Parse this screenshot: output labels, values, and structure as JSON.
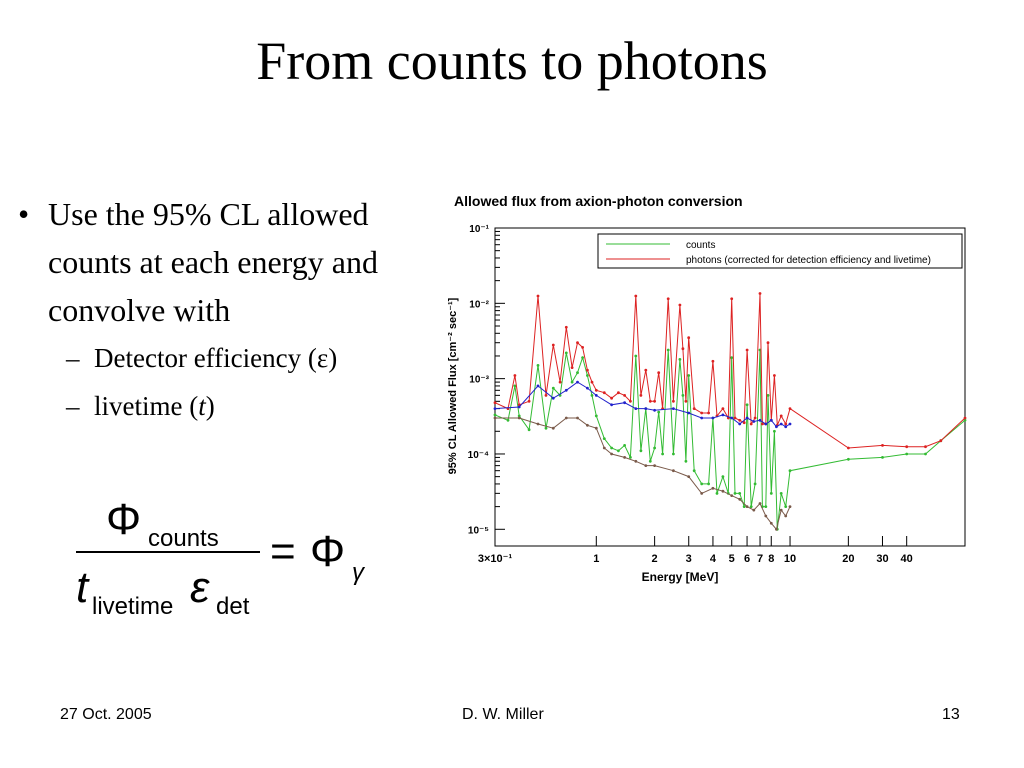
{
  "slide": {
    "title": "From counts to photons",
    "bullets": [
      {
        "text": "Use the 95% CL allowed counts at each energy and convolve with",
        "sub": [
          {
            "prefix": "Detector efficiency (",
            "symbol": "ε",
            "suffix": ")"
          },
          {
            "prefix": "livetime (",
            "symbol": "t",
            "suffix": ")"
          }
        ]
      }
    ],
    "formula": {
      "numerator_symbol": "Φ",
      "numerator_sub": "counts",
      "denominator_t": "t",
      "denominator_t_sub": "livetime",
      "denominator_eps": "ε",
      "denominator_eps_sub": "det",
      "equals": "=",
      "rhs_symbol": "Φ",
      "rhs_sub": "γ"
    }
  },
  "footer": {
    "date": "27 Oct. 2005",
    "author": "D. W. Miller",
    "page": "13"
  },
  "chart_data": {
    "type": "line",
    "title": "Allowed flux from axion-photon conversion",
    "xlabel": "Energy [MeV]",
    "ylabel": "95% CL Allowed Flux [cm⁻² sec⁻¹]",
    "x_scale": "log",
    "y_scale": "log",
    "xlim": [
      0.3,
      80
    ],
    "ylim": [
      6e-06,
      0.1
    ],
    "grid": false,
    "legend_position": "top-right",
    "x_ticks": [
      {
        "v": 0.3,
        "label": "3×10⁻¹"
      },
      {
        "v": 1,
        "label": "1"
      },
      {
        "v": 2,
        "label": "2"
      },
      {
        "v": 3,
        "label": "3"
      },
      {
        "v": 4,
        "label": "4"
      },
      {
        "v": 5,
        "label": "5"
      },
      {
        "v": 6,
        "label": "6"
      },
      {
        "v": 7,
        "label": "7"
      },
      {
        "v": 8,
        "label": "8"
      },
      {
        "v": 10,
        "label": "10"
      },
      {
        "v": 20,
        "label": "20"
      },
      {
        "v": 30,
        "label": "30"
      },
      {
        "v": 40,
        "label": "40"
      }
    ],
    "y_ticks": [
      {
        "v": 1e-05,
        "label": "10⁻⁵"
      },
      {
        "v": 0.0001,
        "label": "10⁻⁴"
      },
      {
        "v": 0.001,
        "label": "10⁻³"
      },
      {
        "v": 0.01,
        "label": "10⁻²"
      },
      {
        "v": 0.1,
        "label": "10⁻¹"
      }
    ],
    "series": [
      {
        "name": "counts",
        "color": "#33bb33",
        "points": [
          [
            0.3,
            0.00033
          ],
          [
            0.35,
            0.00028
          ],
          [
            0.38,
            0.0008
          ],
          [
            0.4,
            0.00032
          ],
          [
            0.45,
            0.00021
          ],
          [
            0.5,
            0.0015
          ],
          [
            0.55,
            0.00022
          ],
          [
            0.6,
            0.00075
          ],
          [
            0.65,
            0.0006
          ],
          [
            0.7,
            0.0022
          ],
          [
            0.75,
            0.0009
          ],
          [
            0.8,
            0.0012
          ],
          [
            0.85,
            0.0019
          ],
          [
            0.9,
            0.0011
          ],
          [
            0.95,
            0.0006
          ],
          [
            1.0,
            0.00032
          ],
          [
            1.1,
            0.00016
          ],
          [
            1.2,
            0.00012
          ],
          [
            1.3,
            0.00011
          ],
          [
            1.4,
            0.00013
          ],
          [
            1.5,
            9e-05
          ],
          [
            1.6,
            0.002
          ],
          [
            1.7,
            0.00011
          ],
          [
            1.8,
            0.0004
          ],
          [
            1.9,
            8e-05
          ],
          [
            2.0,
            0.00012
          ],
          [
            2.1,
            0.00036
          ],
          [
            2.2,
            0.0001
          ],
          [
            2.35,
            0.0024
          ],
          [
            2.5,
            0.0001
          ],
          [
            2.7,
            0.0018
          ],
          [
            2.8,
            0.0006
          ],
          [
            2.9,
            8e-05
          ],
          [
            3.0,
            0.0011
          ],
          [
            3.2,
            6e-05
          ],
          [
            3.5,
            4e-05
          ],
          [
            3.8,
            4e-05
          ],
          [
            4.0,
            0.0003
          ],
          [
            4.2,
            3e-05
          ],
          [
            4.5,
            5e-05
          ],
          [
            4.8,
            3e-05
          ],
          [
            5.0,
            0.0019
          ],
          [
            5.2,
            3e-05
          ],
          [
            5.5,
            3e-05
          ],
          [
            5.8,
            2e-05
          ],
          [
            6.0,
            0.00045
          ],
          [
            6.3,
            2e-05
          ],
          [
            6.6,
            4e-05
          ],
          [
            7.0,
            0.0024
          ],
          [
            7.2,
            2e-05
          ],
          [
            7.5,
            2e-05
          ],
          [
            7.7,
            0.0006
          ],
          [
            8.0,
            3e-05
          ],
          [
            8.3,
            0.0002
          ],
          [
            8.6,
            1e-05
          ],
          [
            9.0,
            3e-05
          ],
          [
            9.5,
            2e-05
          ],
          [
            10.0,
            6e-05
          ],
          [
            20,
            8.5e-05
          ],
          [
            30,
            9e-05
          ],
          [
            40,
            0.0001
          ],
          [
            50,
            0.0001
          ],
          [
            60,
            0.00015
          ],
          [
            80,
            0.00028
          ]
        ]
      },
      {
        "name": "photons (corrected for detection efficiency and livetime)",
        "color": "#dd2222",
        "points": [
          [
            0.3,
            0.00048
          ],
          [
            0.35,
            0.0004
          ],
          [
            0.38,
            0.0011
          ],
          [
            0.4,
            0.00045
          ],
          [
            0.45,
            0.0005
          ],
          [
            0.5,
            0.0125
          ],
          [
            0.55,
            0.0006
          ],
          [
            0.6,
            0.0028
          ],
          [
            0.65,
            0.0009
          ],
          [
            0.7,
            0.0048
          ],
          [
            0.75,
            0.0014
          ],
          [
            0.8,
            0.003
          ],
          [
            0.85,
            0.0026
          ],
          [
            0.9,
            0.0013
          ],
          [
            0.95,
            0.0009
          ],
          [
            1.0,
            0.0007
          ],
          [
            1.1,
            0.00065
          ],
          [
            1.2,
            0.00055
          ],
          [
            1.3,
            0.00065
          ],
          [
            1.4,
            0.0006
          ],
          [
            1.5,
            0.0005
          ],
          [
            1.6,
            0.0125
          ],
          [
            1.7,
            0.0006
          ],
          [
            1.8,
            0.0013
          ],
          [
            1.9,
            0.0005
          ],
          [
            2.0,
            0.0005
          ],
          [
            2.1,
            0.0012
          ],
          [
            2.2,
            0.0004
          ],
          [
            2.35,
            0.0115
          ],
          [
            2.5,
            0.0005
          ],
          [
            2.7,
            0.0095
          ],
          [
            2.8,
            0.0025
          ],
          [
            2.9,
            0.0005
          ],
          [
            3.0,
            0.0035
          ],
          [
            3.2,
            0.0004
          ],
          [
            3.5,
            0.00035
          ],
          [
            3.8,
            0.00035
          ],
          [
            4.0,
            0.0017
          ],
          [
            4.2,
            0.00032
          ],
          [
            4.5,
            0.0004
          ],
          [
            4.8,
            0.0003
          ],
          [
            5.0,
            0.0115
          ],
          [
            5.2,
            0.0003
          ],
          [
            5.5,
            0.00028
          ],
          [
            5.8,
            0.00026
          ],
          [
            6.0,
            0.0024
          ],
          [
            6.3,
            0.00025
          ],
          [
            6.6,
            0.0003
          ],
          [
            7.0,
            0.0135
          ],
          [
            7.2,
            0.00025
          ],
          [
            7.5,
            0.00025
          ],
          [
            7.7,
            0.003
          ],
          [
            8.0,
            0.00028
          ],
          [
            8.3,
            0.0011
          ],
          [
            8.6,
            0.00024
          ],
          [
            9.0,
            0.00032
          ],
          [
            9.5,
            0.00025
          ],
          [
            10.0,
            0.0004
          ],
          [
            20,
            0.00012
          ],
          [
            30,
            0.00013
          ],
          [
            40,
            0.000125
          ],
          [
            50,
            0.000125
          ],
          [
            60,
            0.00015
          ],
          [
            80,
            0.0003
          ]
        ]
      },
      {
        "name": "",
        "color": "#2222cc",
        "x_range": [
          0.3,
          10
        ],
        "points": [
          [
            0.3,
            0.0004
          ],
          [
            0.4,
            0.00042
          ],
          [
            0.5,
            0.0008
          ],
          [
            0.6,
            0.00055
          ],
          [
            0.7,
            0.0007
          ],
          [
            0.8,
            0.0009
          ],
          [
            0.9,
            0.00075
          ],
          [
            1.0,
            0.0006
          ],
          [
            1.2,
            0.00045
          ],
          [
            1.4,
            0.00048
          ],
          [
            1.6,
            0.0004
          ],
          [
            1.8,
            0.0004
          ],
          [
            2.0,
            0.00038
          ],
          [
            2.5,
            0.0004
          ],
          [
            3.0,
            0.00035
          ],
          [
            3.5,
            0.0003
          ],
          [
            4.0,
            0.0003
          ],
          [
            4.5,
            0.00033
          ],
          [
            5.0,
            0.0003
          ],
          [
            5.5,
            0.00025
          ],
          [
            6.0,
            0.0003
          ],
          [
            6.5,
            0.00027
          ],
          [
            7.0,
            0.00028
          ],
          [
            7.5,
            0.00025
          ],
          [
            8.0,
            0.00028
          ],
          [
            8.5,
            0.00023
          ],
          [
            9.0,
            0.00025
          ],
          [
            9.5,
            0.00023
          ],
          [
            10.0,
            0.00025
          ]
        ]
      },
      {
        "name": "",
        "color": "#7a5a4a",
        "x_range": [
          0.3,
          10
        ],
        "points": [
          [
            0.3,
            0.0003
          ],
          [
            0.4,
            0.0003
          ],
          [
            0.5,
            0.00025
          ],
          [
            0.6,
            0.00022
          ],
          [
            0.7,
            0.0003
          ],
          [
            0.8,
            0.0003
          ],
          [
            0.9,
            0.00024
          ],
          [
            1.0,
            0.00022
          ],
          [
            1.1,
            0.00012
          ],
          [
            1.2,
            0.0001
          ],
          [
            1.4,
            9e-05
          ],
          [
            1.6,
            8e-05
          ],
          [
            1.8,
            7e-05
          ],
          [
            2.0,
            7e-05
          ],
          [
            2.5,
            6e-05
          ],
          [
            3.0,
            5e-05
          ],
          [
            3.5,
            3e-05
          ],
          [
            4.0,
            3.5e-05
          ],
          [
            4.5,
            3.2e-05
          ],
          [
            5.0,
            2.8e-05
          ],
          [
            5.5,
            2.5e-05
          ],
          [
            6.0,
            2e-05
          ],
          [
            6.5,
            1.8e-05
          ],
          [
            7.0,
            2.2e-05
          ],
          [
            7.5,
            1.5e-05
          ],
          [
            8.0,
            1.2e-05
          ],
          [
            8.5,
            1e-05
          ],
          [
            9.0,
            1.8e-05
          ],
          [
            9.5,
            1.5e-05
          ],
          [
            10.0,
            2e-05
          ]
        ]
      }
    ]
  }
}
